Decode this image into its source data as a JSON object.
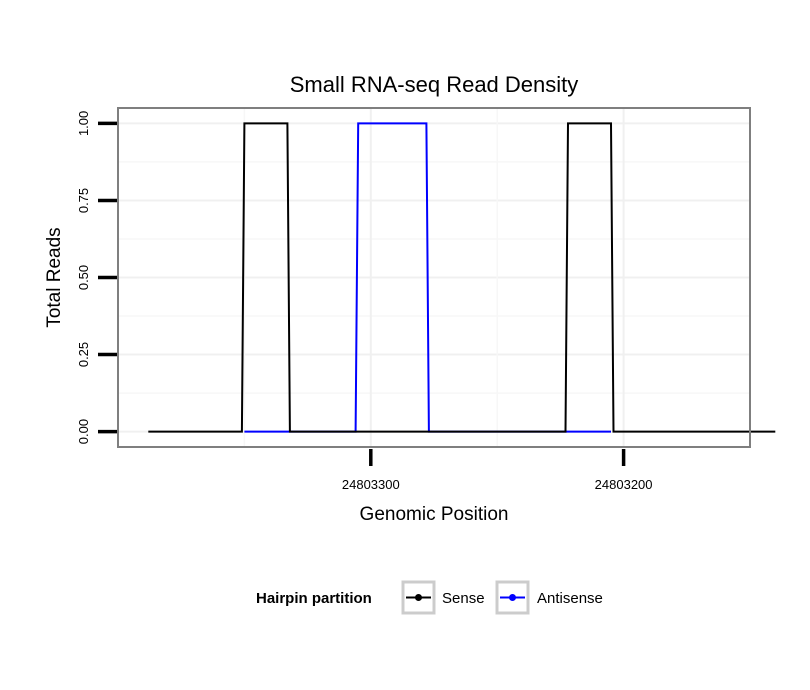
{
  "chart_data": {
    "type": "line",
    "title": "Small RNA-seq Read Density",
    "xlabel": "Genomic Position",
    "ylabel": "Total Reads",
    "x_reversed": true,
    "xlim": [
      24803400,
      24803150
    ],
    "ylim": [
      -0.05,
      1.05
    ],
    "x_ticks": [
      24803300,
      24803200
    ],
    "x_tick_labels": [
      "24803300",
      "24803200"
    ],
    "y_ticks": [
      0,
      0.25,
      0.5,
      0.75,
      1
    ],
    "y_tick_labels": [
      "0.00",
      "0.25",
      "0.50",
      "0.75",
      "1.00"
    ],
    "grid": true,
    "legend": {
      "title": "Hairpin partition",
      "position": "bottom",
      "entries": [
        "Sense",
        "Antisense"
      ]
    },
    "series": [
      {
        "name": "Sense",
        "color": "#000000",
        "x": [
          24803388,
          24803351,
          24803350,
          24803333,
          24803332,
          24803223,
          24803222,
          24803205,
          24803204,
          24803140
        ],
        "y": [
          0,
          0,
          1,
          1,
          0,
          0,
          1,
          1,
          0,
          0
        ]
      },
      {
        "name": "Antisense",
        "color": "#0000ff",
        "x": [
          24803350,
          24803306,
          24803305,
          24803278,
          24803277,
          24803222,
          24803205
        ],
        "y": [
          0,
          0,
          1,
          1,
          0,
          0,
          0
        ]
      }
    ]
  }
}
